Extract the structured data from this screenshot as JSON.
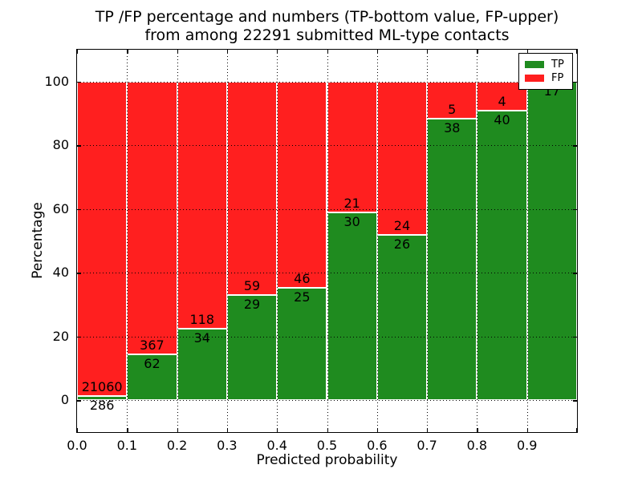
{
  "figure": {
    "title_line1": "TP /FP percentage and numbers (TP-bottom value, FP-upper)",
    "title_line2": "from among 22291 submitted ML-type contacts",
    "xlabel": "Predicted probability",
    "ylabel": "Percentage"
  },
  "legend": {
    "position": "upper right",
    "items": [
      {
        "label": "TP",
        "color": "#1f8b1f"
      },
      {
        "label": "FP",
        "color": "#ff1f1f"
      }
    ]
  },
  "chart_data": {
    "type": "bar",
    "stacked": true,
    "normalized": "percent",
    "title": "TP /FP percentage and numbers (TP-bottom value, FP-upper) from among 22291 submitted ML-type contacts",
    "xlabel": "Predicted probability",
    "ylabel": "Percentage",
    "total_contacts": 22291,
    "xlim": [
      0.0,
      1.0
    ],
    "ylim": [
      -10,
      110
    ],
    "bin_edges": [
      0.0,
      0.1,
      0.2,
      0.3,
      0.4,
      0.5,
      0.6,
      0.7,
      0.8,
      0.9,
      1.0
    ],
    "x_tick_labels": [
      "0.0",
      "0.1",
      "0.2",
      "0.3",
      "0.4",
      "0.5",
      "0.6",
      "0.7",
      "0.8",
      "0.9"
    ],
    "y_tick_values": [
      0,
      20,
      40,
      60,
      80,
      100
    ],
    "y_tick_labels": [
      "0",
      "20",
      "40",
      "60",
      "80",
      "100"
    ],
    "x_gridlines": [
      0.1,
      0.2,
      0.3,
      0.4,
      0.5,
      0.6,
      0.7,
      0.8,
      0.9
    ],
    "grid_style": "dotted",
    "bar_edge_color": "#ffffff",
    "series": [
      {
        "name": "TP",
        "color": "#1f8b1f",
        "values": [
          286,
          62,
          34,
          29,
          25,
          30,
          26,
          38,
          40,
          17
        ]
      },
      {
        "name": "FP",
        "color": "#ff1f1f",
        "values": [
          21060,
          367,
          118,
          59,
          46,
          21,
          24,
          5,
          4,
          0
        ]
      }
    ],
    "tp_percent_per_bin": [
      1.34,
      14.45,
      22.37,
      32.95,
      35.21,
      58.82,
      52.0,
      88.37,
      90.91,
      100.0
    ]
  }
}
